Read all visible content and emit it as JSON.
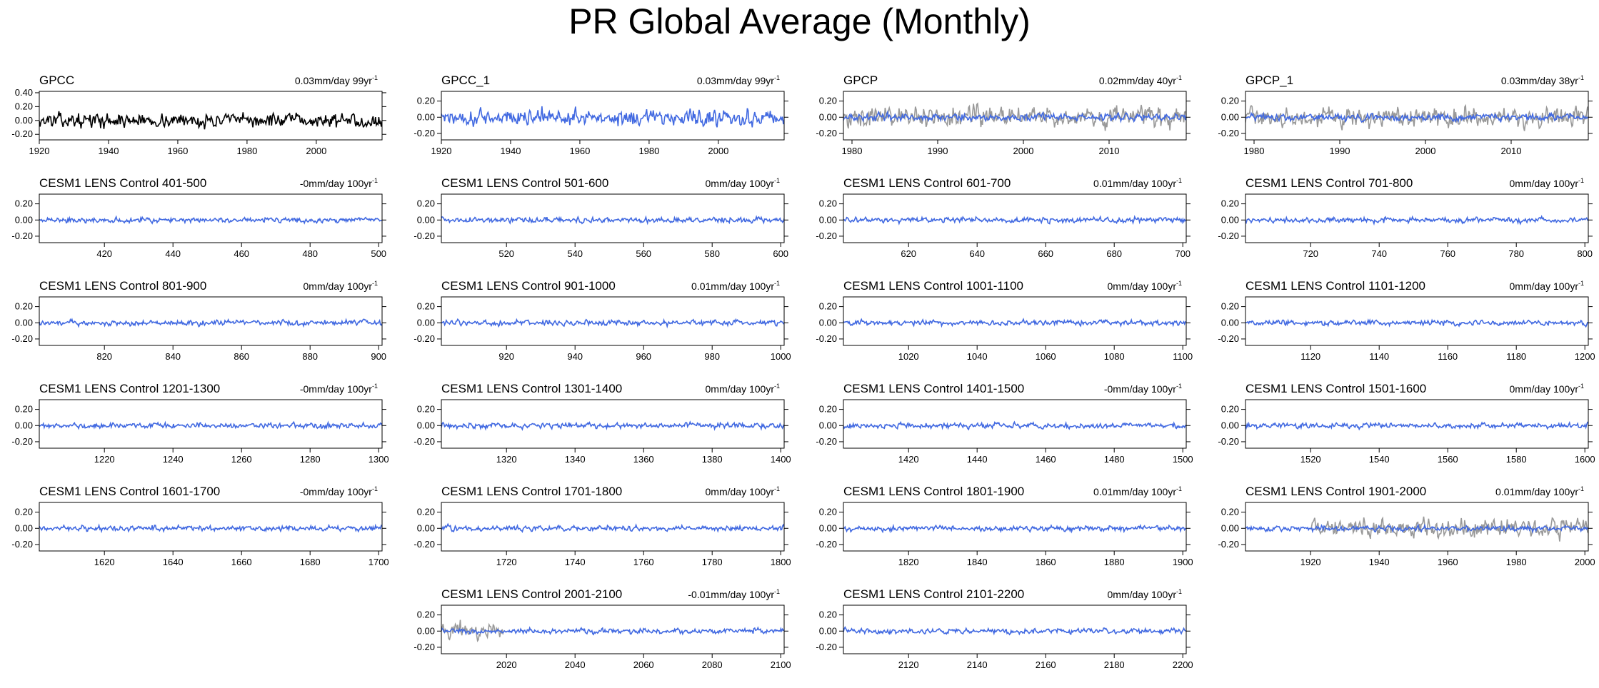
{
  "title": "PR Global Average (Monthly)",
  "colors": {
    "model": "#4169e1",
    "obs": "#000000",
    "overlay": "#999999"
  },
  "chart_data": [
    {
      "type": "line",
      "title": "GPCC",
      "trend": "0.03mm/day 99yr",
      "xlim": [
        1920,
        2019
      ],
      "ylim": [
        -0.28,
        0.42
      ],
      "yticks": [
        "0.40",
        "0.20",
        "0.00",
        "-0.20"
      ],
      "xticks": [
        1920,
        1940,
        1960,
        1980,
        2000
      ],
      "series_color": "obs",
      "amplitude": 0.09,
      "overlay": null
    },
    {
      "type": "line",
      "title": "GPCC_1",
      "trend": "0.03mm/day 99yr",
      "xlim": [
        1920,
        2019
      ],
      "ylim": [
        -0.28,
        0.32
      ],
      "yticks": [
        "0.20",
        "0.00",
        "-0.20"
      ],
      "xticks": [
        1920,
        1940,
        1960,
        1980,
        2000
      ],
      "series_color": "model",
      "amplitude": 0.09,
      "overlay": null
    },
    {
      "type": "line",
      "title": "GPCP",
      "trend": "0.02mm/day 40yr",
      "xlim": [
        1979,
        2019
      ],
      "ylim": [
        -0.28,
        0.32
      ],
      "yticks": [
        "0.20",
        "0.00",
        "-0.20"
      ],
      "xticks": [
        1980,
        1990,
        2000,
        2010
      ],
      "series_color": "model",
      "amplitude": 0.04,
      "overlay": {
        "start": 1979,
        "end": 2019,
        "amplitude": 0.11
      }
    },
    {
      "type": "line",
      "title": "GPCP_1",
      "trend": "0.03mm/day 38yr",
      "xlim": [
        1979,
        2019
      ],
      "ylim": [
        -0.28,
        0.32
      ],
      "yticks": [
        "0.20",
        "0.00",
        "-0.20"
      ],
      "xticks": [
        1980,
        1990,
        2000,
        2010
      ],
      "series_color": "model",
      "amplitude": 0.04,
      "overlay": {
        "start": 1979,
        "end": 2019,
        "amplitude": 0.11
      }
    },
    {
      "type": "line",
      "title": "CESM1 LENS Control 401-500",
      "trend": "-0mm/day 100yr",
      "xlim": [
        401,
        501
      ],
      "ylim": [
        -0.28,
        0.32
      ],
      "yticks": [
        "0.20",
        "0.00",
        "-0.20"
      ],
      "xticks": [
        420,
        440,
        460,
        480,
        500
      ],
      "series_color": "model",
      "amplitude": 0.03,
      "overlay": null
    },
    {
      "type": "line",
      "title": "CESM1 LENS Control 501-600",
      "trend": "0mm/day 100yr",
      "xlim": [
        501,
        601
      ],
      "ylim": [
        -0.28,
        0.32
      ],
      "yticks": [
        "0.20",
        "0.00",
        "-0.20"
      ],
      "xticks": [
        520,
        540,
        560,
        580,
        600
      ],
      "series_color": "model",
      "amplitude": 0.03,
      "overlay": null
    },
    {
      "type": "line",
      "title": "CESM1 LENS Control 601-700",
      "trend": "0.01mm/day 100yr",
      "xlim": [
        601,
        701
      ],
      "ylim": [
        -0.28,
        0.32
      ],
      "yticks": [
        "0.20",
        "0.00",
        "-0.20"
      ],
      "xticks": [
        620,
        640,
        660,
        680,
        700
      ],
      "series_color": "model",
      "amplitude": 0.03,
      "overlay": null
    },
    {
      "type": "line",
      "title": "CESM1 LENS Control 701-800",
      "trend": "0mm/day 100yr",
      "xlim": [
        701,
        801
      ],
      "ylim": [
        -0.28,
        0.32
      ],
      "yticks": [
        "0.20",
        "0.00",
        "-0.20"
      ],
      "xticks": [
        720,
        740,
        760,
        780,
        800
      ],
      "series_color": "model",
      "amplitude": 0.03,
      "overlay": null
    },
    {
      "type": "line",
      "title": "CESM1 LENS Control 801-900",
      "trend": "0mm/day 100yr",
      "xlim": [
        801,
        901
      ],
      "ylim": [
        -0.28,
        0.32
      ],
      "yticks": [
        "0.20",
        "0.00",
        "-0.20"
      ],
      "xticks": [
        820,
        840,
        860,
        880,
        900
      ],
      "series_color": "model",
      "amplitude": 0.03,
      "overlay": null
    },
    {
      "type": "line",
      "title": "CESM1 LENS Control 901-1000",
      "trend": "0.01mm/day 100yr",
      "xlim": [
        901,
        1001
      ],
      "ylim": [
        -0.28,
        0.32
      ],
      "yticks": [
        "0.20",
        "0.00",
        "-0.20"
      ],
      "xticks": [
        920,
        940,
        960,
        980,
        1000
      ],
      "series_color": "model",
      "amplitude": 0.03,
      "overlay": null
    },
    {
      "type": "line",
      "title": "CESM1 LENS Control 1001-1100",
      "trend": "0mm/day 100yr",
      "xlim": [
        1001,
        1101
      ],
      "ylim": [
        -0.28,
        0.32
      ],
      "yticks": [
        "0.20",
        "0.00",
        "-0.20"
      ],
      "xticks": [
        1020,
        1040,
        1060,
        1080,
        1100
      ],
      "series_color": "model",
      "amplitude": 0.03,
      "overlay": null
    },
    {
      "type": "line",
      "title": "CESM1 LENS Control 1101-1200",
      "trend": "0mm/day 100yr",
      "xlim": [
        1101,
        1201
      ],
      "ylim": [
        -0.28,
        0.32
      ],
      "yticks": [
        "0.20",
        "0.00",
        "-0.20"
      ],
      "xticks": [
        1120,
        1140,
        1160,
        1180,
        1200
      ],
      "series_color": "model",
      "amplitude": 0.03,
      "overlay": null
    },
    {
      "type": "line",
      "title": "CESM1 LENS Control 1201-1300",
      "trend": "-0mm/day 100yr",
      "xlim": [
        1201,
        1301
      ],
      "ylim": [
        -0.28,
        0.32
      ],
      "yticks": [
        "0.20",
        "0.00",
        "-0.20"
      ],
      "xticks": [
        1220,
        1240,
        1260,
        1280,
        1300
      ],
      "series_color": "model",
      "amplitude": 0.03,
      "overlay": null
    },
    {
      "type": "line",
      "title": "CESM1 LENS Control 1301-1400",
      "trend": "0mm/day 100yr",
      "xlim": [
        1301,
        1401
      ],
      "ylim": [
        -0.28,
        0.32
      ],
      "yticks": [
        "0.20",
        "0.00",
        "-0.20"
      ],
      "xticks": [
        1320,
        1340,
        1360,
        1380,
        1400
      ],
      "series_color": "model",
      "amplitude": 0.03,
      "overlay": null
    },
    {
      "type": "line",
      "title": "CESM1 LENS Control 1401-1500",
      "trend": "-0mm/day 100yr",
      "xlim": [
        1401,
        1501
      ],
      "ylim": [
        -0.28,
        0.32
      ],
      "yticks": [
        "0.20",
        "0.00",
        "-0.20"
      ],
      "xticks": [
        1420,
        1440,
        1460,
        1480,
        1500
      ],
      "series_color": "model",
      "amplitude": 0.03,
      "overlay": null
    },
    {
      "type": "line",
      "title": "CESM1 LENS Control 1501-1600",
      "trend": "0mm/day 100yr",
      "xlim": [
        1501,
        1601
      ],
      "ylim": [
        -0.28,
        0.32
      ],
      "yticks": [
        "0.20",
        "0.00",
        "-0.20"
      ],
      "xticks": [
        1520,
        1540,
        1560,
        1580,
        1600
      ],
      "series_color": "model",
      "amplitude": 0.03,
      "overlay": null
    },
    {
      "type": "line",
      "title": "CESM1 LENS Control 1601-1700",
      "trend": "-0mm/day 100yr",
      "xlim": [
        1601,
        1701
      ],
      "ylim": [
        -0.28,
        0.32
      ],
      "yticks": [
        "0.20",
        "0.00",
        "-0.20"
      ],
      "xticks": [
        1620,
        1640,
        1660,
        1680,
        1700
      ],
      "series_color": "model",
      "amplitude": 0.03,
      "overlay": null
    },
    {
      "type": "line",
      "title": "CESM1 LENS Control 1701-1800",
      "trend": "0mm/day 100yr",
      "xlim": [
        1701,
        1801
      ],
      "ylim": [
        -0.28,
        0.32
      ],
      "yticks": [
        "0.20",
        "0.00",
        "-0.20"
      ],
      "xticks": [
        1720,
        1740,
        1760,
        1780,
        1800
      ],
      "series_color": "model",
      "amplitude": 0.03,
      "overlay": null
    },
    {
      "type": "line",
      "title": "CESM1 LENS Control 1801-1900",
      "trend": "0.01mm/day 100yr",
      "xlim": [
        1801,
        1901
      ],
      "ylim": [
        -0.28,
        0.32
      ],
      "yticks": [
        "0.20",
        "0.00",
        "-0.20"
      ],
      "xticks": [
        1820,
        1840,
        1860,
        1880,
        1900
      ],
      "series_color": "model",
      "amplitude": 0.03,
      "overlay": null
    },
    {
      "type": "line",
      "title": "CESM1 LENS Control 1901-2000",
      "trend": "0.01mm/day 100yr",
      "xlim": [
        1901,
        2001
      ],
      "ylim": [
        -0.28,
        0.32
      ],
      "yticks": [
        "0.20",
        "0.00",
        "-0.20"
      ],
      "xticks": [
        1920,
        1940,
        1960,
        1980,
        2000
      ],
      "series_color": "model",
      "amplitude": 0.03,
      "overlay": {
        "start": 1920,
        "end": 2001,
        "amplitude": 0.1
      }
    },
    {
      "type": "line",
      "title": "CESM1 LENS Control 2001-2100",
      "trend": "-0.01mm/day 100yr",
      "xlim": [
        2001,
        2101
      ],
      "ylim": [
        -0.28,
        0.32
      ],
      "yticks": [
        "0.20",
        "0.00",
        "-0.20"
      ],
      "xticks": [
        2020,
        2040,
        2060,
        2080,
        2100
      ],
      "series_color": "model",
      "amplitude": 0.03,
      "overlay": {
        "start": 2001,
        "end": 2019,
        "amplitude": 0.1
      }
    },
    {
      "type": "line",
      "title": "CESM1 LENS Control 2101-2200",
      "trend": "0mm/day 100yr",
      "xlim": [
        2101,
        2201
      ],
      "ylim": [
        -0.28,
        0.32
      ],
      "yticks": [
        "0.20",
        "0.00",
        "-0.20"
      ],
      "xticks": [
        2120,
        2140,
        2160,
        2180,
        2200
      ],
      "series_color": "model",
      "amplitude": 0.03,
      "overlay": null
    }
  ]
}
